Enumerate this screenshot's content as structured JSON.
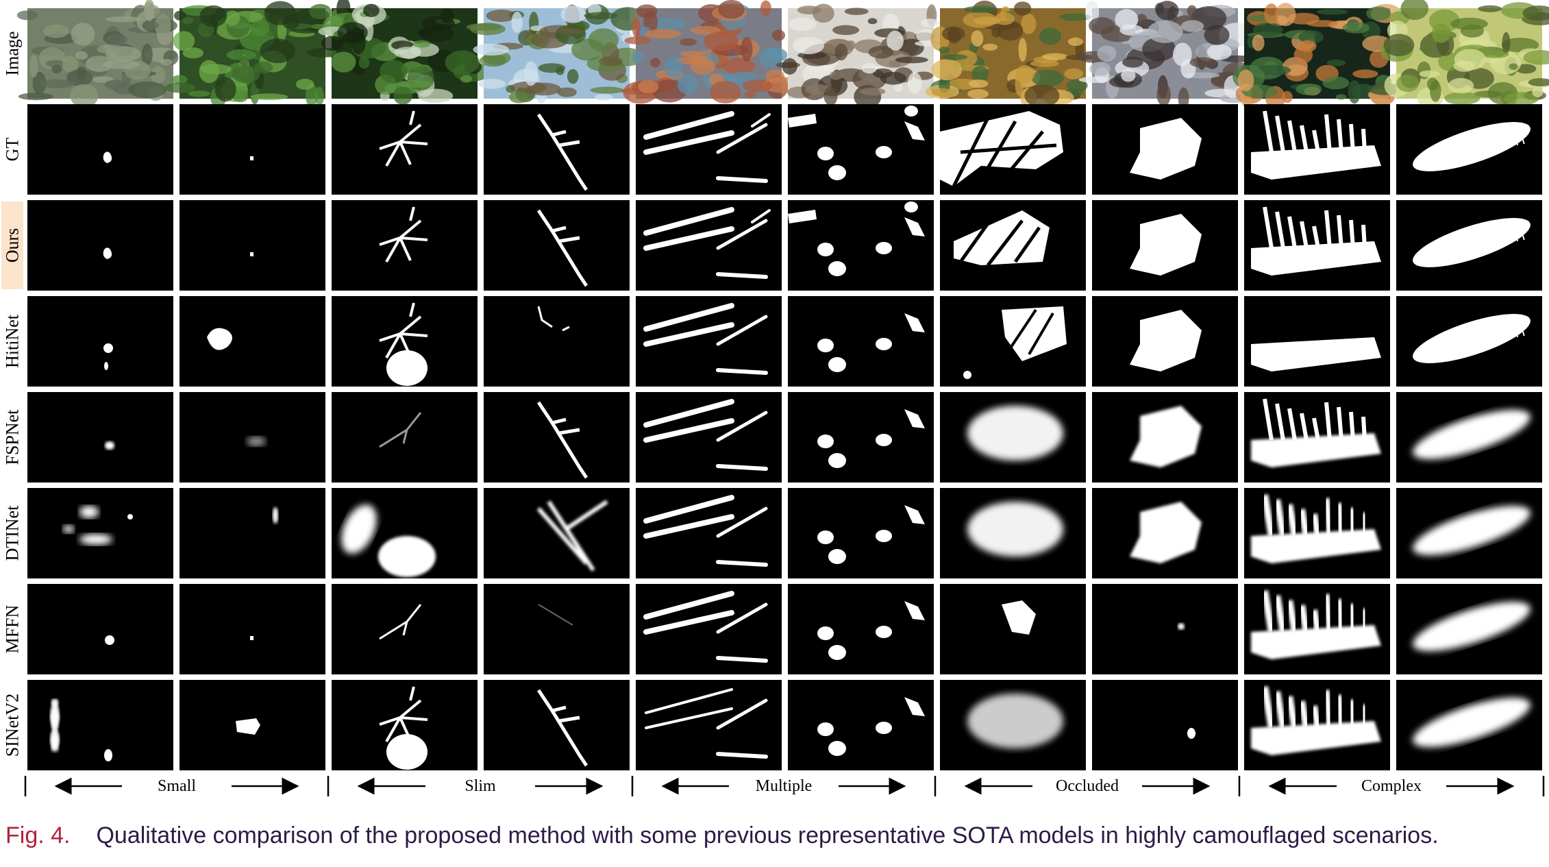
{
  "figure": {
    "rows": [
      {
        "label": "Image",
        "type": "photo",
        "highlight": false
      },
      {
        "label": "GT",
        "type": "mask",
        "highlight": false
      },
      {
        "label": "Ours",
        "type": "mask",
        "highlight": true
      },
      {
        "label": "HitiNet",
        "type": "mask",
        "highlight": false
      },
      {
        "label": "FSPNet",
        "type": "mask",
        "highlight": false
      },
      {
        "label": "DTINet",
        "type": "mask",
        "highlight": false
      },
      {
        "label": "MFFN",
        "type": "mask",
        "highlight": false
      },
      {
        "label": "SINetV2",
        "type": "mask",
        "highlight": false
      }
    ],
    "columns": 10,
    "groups": [
      {
        "label": "Small"
      },
      {
        "label": "Slim"
      },
      {
        "label": "Multiple"
      },
      {
        "label": "Occluded"
      },
      {
        "label": "Complex"
      }
    ],
    "colors": {
      "mask_bg": "#000000",
      "mask_fg": "#ffffff",
      "highlight": "#fbe3cc",
      "caption_label": "#b0233b",
      "caption_text": "#2e1a47"
    }
  },
  "caption": {
    "label": "Fig. 4.",
    "text": "Qualitative comparison of the proposed method with some previous representative SOTA models in highly camouflaged scenarios."
  }
}
